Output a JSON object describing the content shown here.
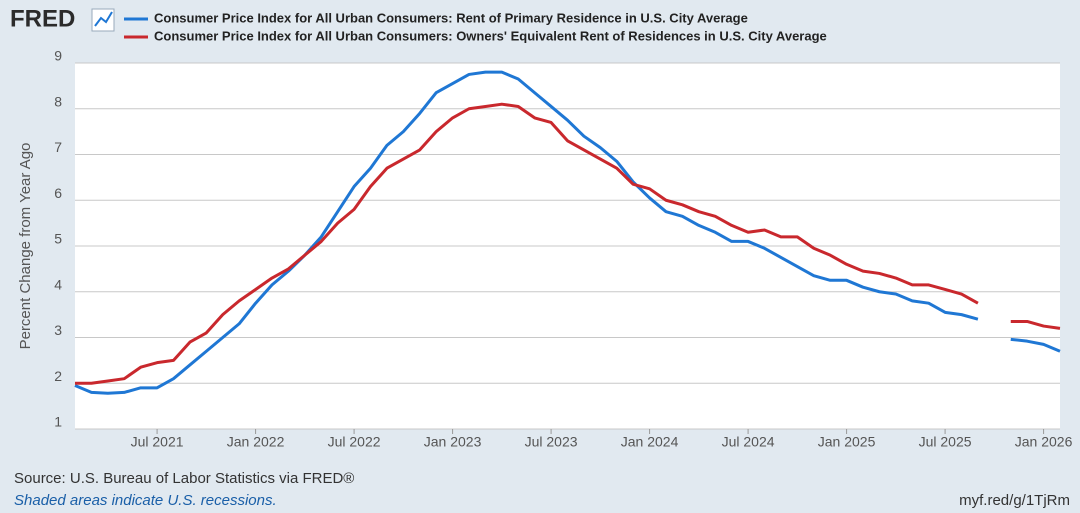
{
  "logo": "FRED",
  "chart_data": {
    "type": "line",
    "y_label": "Percent Change from Year Ago",
    "x": [
      "2021-02",
      "2021-03",
      "2021-04",
      "2021-05",
      "2021-06",
      "2021-07",
      "2021-08",
      "2021-09",
      "2021-10",
      "2021-11",
      "2021-12",
      "2022-01",
      "2022-02",
      "2022-03",
      "2022-04",
      "2022-05",
      "2022-06",
      "2022-07",
      "2022-08",
      "2022-09",
      "2022-10",
      "2022-11",
      "2022-12",
      "2023-01",
      "2023-02",
      "2023-03",
      "2023-04",
      "2023-05",
      "2023-06",
      "2023-07",
      "2023-08",
      "2023-09",
      "2023-10",
      "2023-11",
      "2023-12",
      "2024-01",
      "2024-02",
      "2024-03",
      "2024-04",
      "2024-05",
      "2024-06",
      "2024-07",
      "2024-08",
      "2024-09",
      "2024-10",
      "2024-11",
      "2024-12",
      "2025-01",
      "2025-02",
      "2025-03",
      "2025-04",
      "2025-05",
      "2025-06",
      "2025-07",
      "2025-08",
      "2025-09",
      "2025-10",
      "2025-11",
      "2025-12",
      "2026-01",
      "2026-02"
    ],
    "xlim": [
      "2021-02",
      "2026-02"
    ],
    "xticks": [
      {
        "value": "2021-07",
        "label": "Jul 2021"
      },
      {
        "value": "2022-01",
        "label": "Jan 2022"
      },
      {
        "value": "2022-07",
        "label": "Jul 2022"
      },
      {
        "value": "2023-01",
        "label": "Jan 2023"
      },
      {
        "value": "2023-07",
        "label": "Jul 2023"
      },
      {
        "value": "2024-01",
        "label": "Jan 2024"
      },
      {
        "value": "2024-07",
        "label": "Jul 2024"
      },
      {
        "value": "2025-01",
        "label": "Jan 2025"
      },
      {
        "value": "2025-07",
        "label": "Jul 2025"
      },
      {
        "value": "2026-01",
        "label": "Jan 2026"
      }
    ],
    "ylim": [
      1,
      9
    ],
    "yticks": [
      1,
      2,
      3,
      4,
      5,
      6,
      7,
      8,
      9
    ],
    "grid": true,
    "series": [
      {
        "name": "Consumer Price Index for All Urban Consumers: Rent of Primary Residence in U.S. City Average",
        "color": "#1f77d4",
        "values": [
          1.95,
          1.8,
          1.78,
          1.8,
          1.9,
          1.9,
          2.1,
          2.4,
          2.7,
          3.0,
          3.3,
          3.75,
          4.15,
          4.45,
          4.8,
          5.2,
          5.75,
          6.3,
          6.7,
          7.2,
          7.5,
          7.9,
          8.35,
          8.55,
          8.75,
          8.8,
          8.8,
          8.65,
          8.35,
          8.05,
          7.75,
          7.4,
          7.15,
          6.85,
          6.4,
          6.05,
          5.75,
          5.65,
          5.45,
          5.3,
          5.1,
          5.1,
          4.95,
          4.75,
          4.55,
          4.35,
          4.25,
          4.25,
          4.1,
          4.0,
          3.95,
          3.8,
          3.75,
          3.55,
          3.5,
          3.4,
          null,
          2.96,
          2.92,
          2.85,
          2.7
        ]
      },
      {
        "name": "Consumer Price Index for All Urban Consumers: Owners' Equivalent Rent of Residences in U.S. City Average",
        "color": "#c9282d",
        "values": [
          2.0,
          2.0,
          2.05,
          2.1,
          2.35,
          2.45,
          2.5,
          2.9,
          3.1,
          3.5,
          3.8,
          4.05,
          4.3,
          4.5,
          4.8,
          5.1,
          5.5,
          5.8,
          6.3,
          6.7,
          6.9,
          7.1,
          7.5,
          7.8,
          8.0,
          8.05,
          8.1,
          8.05,
          7.8,
          7.7,
          7.3,
          7.1,
          6.9,
          6.7,
          6.35,
          6.25,
          6.0,
          5.9,
          5.75,
          5.65,
          5.45,
          5.3,
          5.35,
          5.2,
          5.2,
          4.95,
          4.8,
          4.6,
          4.45,
          4.4,
          4.3,
          4.15,
          4.15,
          4.05,
          3.95,
          3.75,
          null,
          3.35,
          3.35,
          3.25,
          3.2
        ]
      }
    ]
  },
  "footer": {
    "source": "Source: U.S. Bureau of Labor Statistics via FRED®",
    "note": "Shaded areas indicate U.S. recessions.",
    "url": "myf.red/g/1TjRm"
  }
}
